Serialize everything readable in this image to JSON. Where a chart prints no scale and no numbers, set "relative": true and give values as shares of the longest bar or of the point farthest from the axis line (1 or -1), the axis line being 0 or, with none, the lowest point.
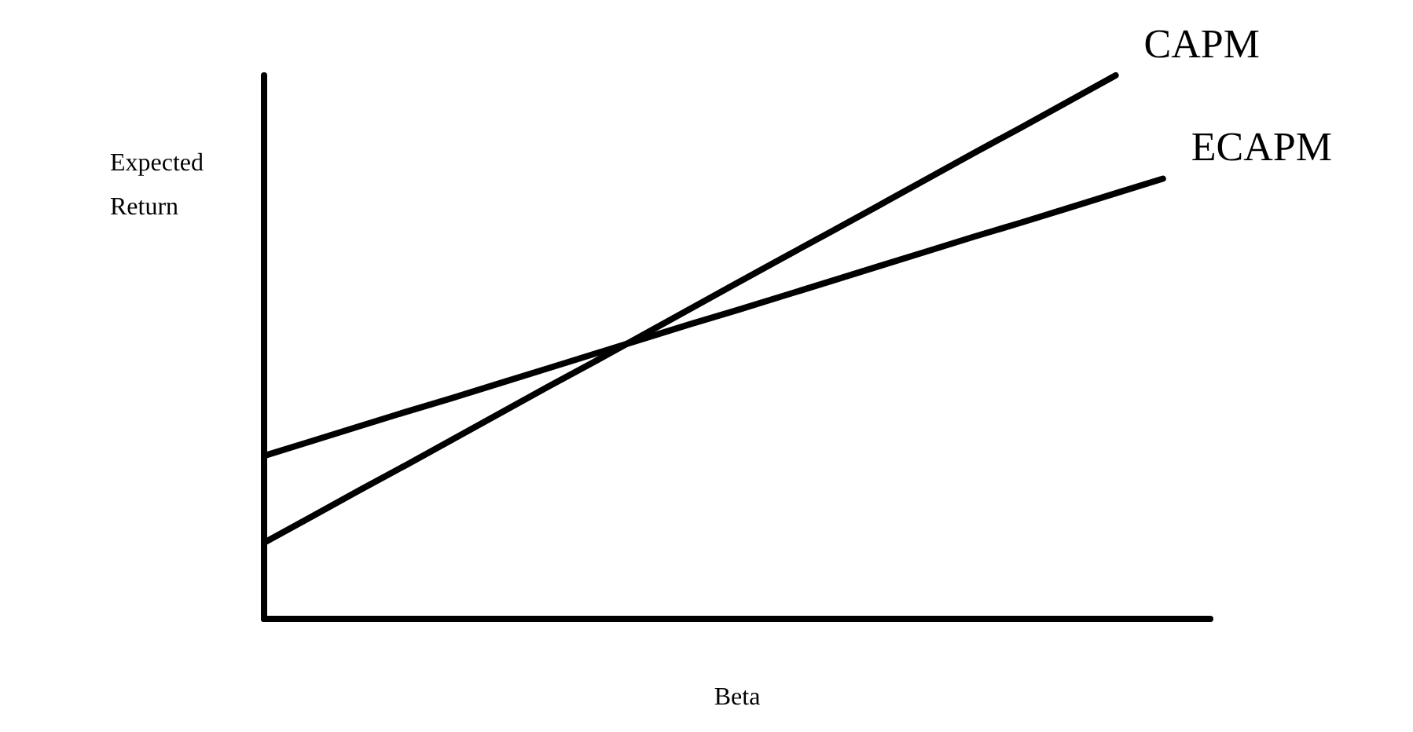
{
  "chart_data": {
    "type": "line",
    "relative": true,
    "xlabel": "Beta",
    "ylabel": "Expected Return",
    "grid": false,
    "legend": false,
    "marker": "none",
    "line_style": "solid",
    "categories": [
      null,
      null,
      null,
      null,
      null,
      null,
      null,
      null,
      null,
      null,
      null,
      null,
      null,
      null,
      null,
      null,
      null,
      null,
      null,
      null,
      null
    ],
    "series": [
      {
        "name": "CAPM",
        "color": "#000000",
        "values": [
          0.14,
          0.188,
          0.236,
          0.283,
          0.331,
          0.379,
          0.427,
          0.474,
          0.522,
          0.57,
          0.618,
          0.666,
          0.713,
          0.761,
          0.809,
          0.857,
          0.904,
          0.952,
          1,
          null,
          null
        ]
      },
      {
        "name": "ECAPM",
        "color": "#000000",
        "values": [
          0.3,
          0.327,
          0.354,
          0.381,
          0.407,
          0.434,
          0.461,
          0.488,
          0.515,
          0.542,
          0.568,
          0.595,
          0.622,
          0.649,
          0.676,
          0.703,
          0.729,
          0.756,
          0.783,
          0.81,
          null
        ]
      }
    ]
  }
}
